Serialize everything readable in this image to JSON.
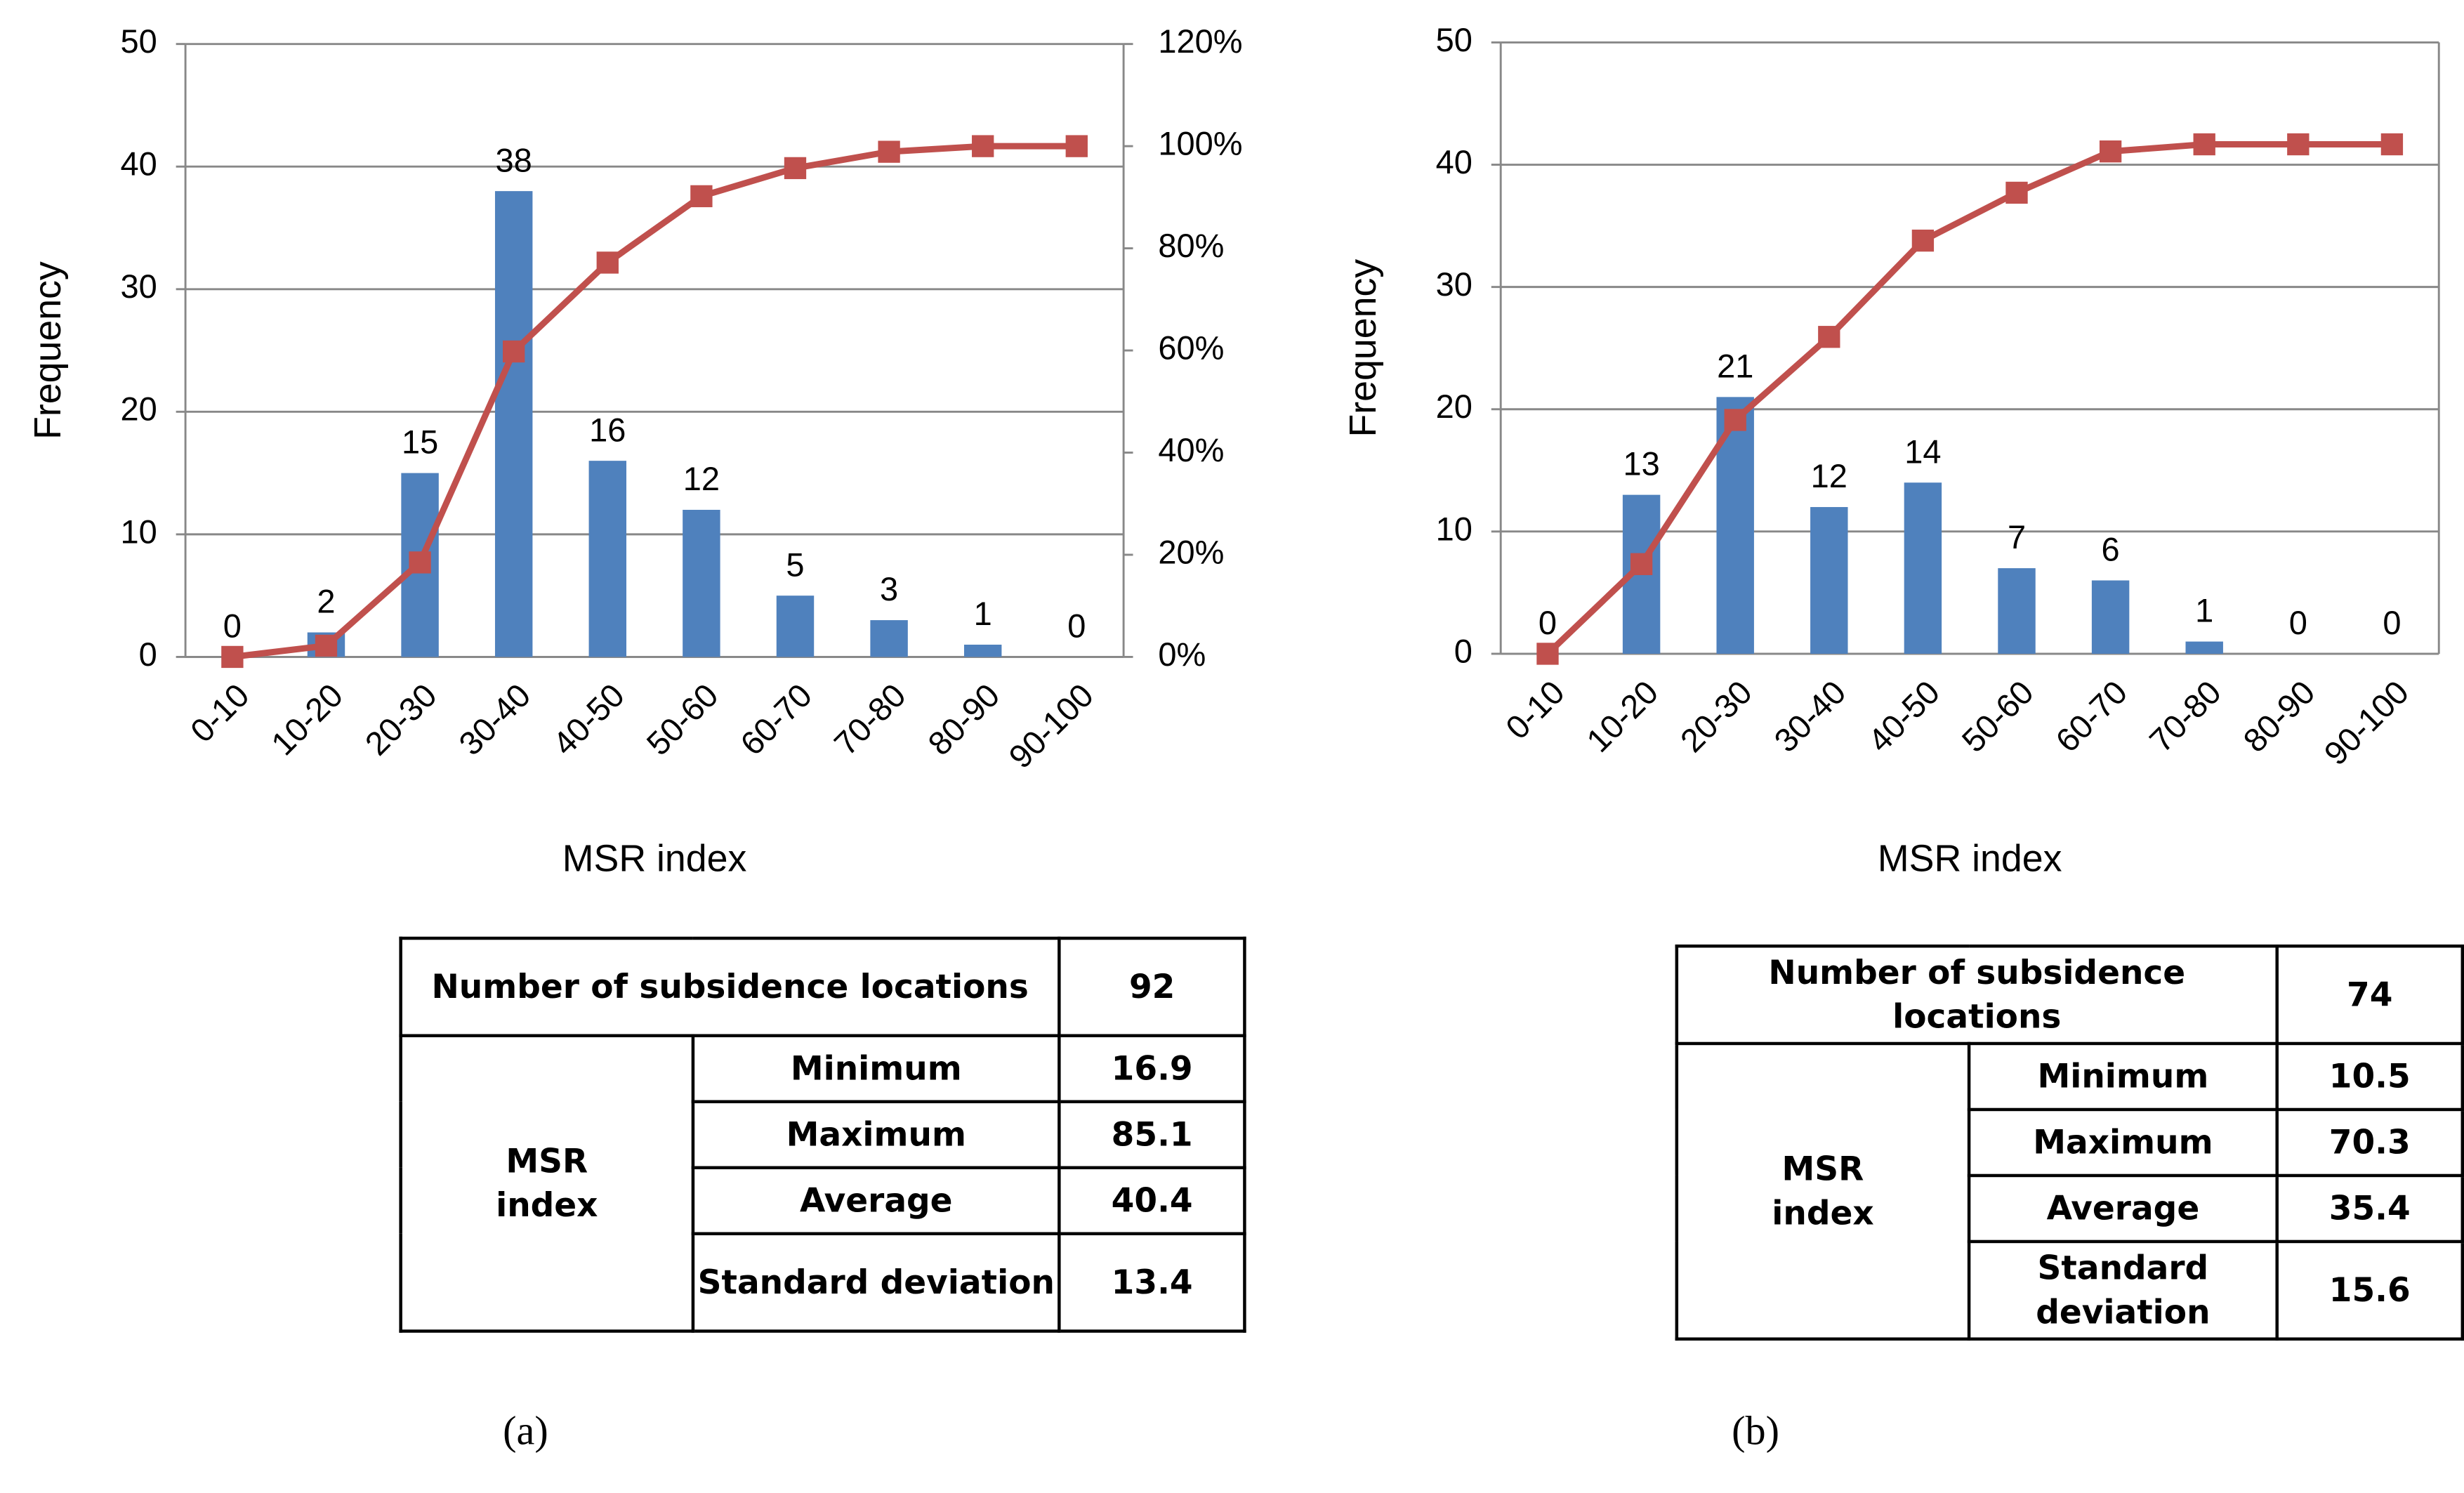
{
  "chart_data": [
    {
      "type": "bar",
      "y_label": "Frequency",
      "x_label": "MSR index",
      "categories": [
        "0-10",
        "10-20",
        "20-30",
        "30-40",
        "40-50",
        "50-60",
        "60-70",
        "70-80",
        "80-90",
        "90-100"
      ],
      "series": [
        {
          "color": "#4f81bd",
          "values": [
            0,
            2,
            15,
            38,
            16,
            12,
            5,
            3,
            1,
            0
          ]
        },
        {
          "type": "line",
          "axis": "y2",
          "color": "#c0504d",
          "values": [
            0,
            2.2,
            18.5,
            59.8,
            77.2,
            90.2,
            95.7,
            98.9,
            100,
            100
          ]
        }
      ],
      "ylim": [
        0,
        50
      ],
      "yticks": [
        0,
        10,
        20,
        30,
        40,
        50
      ],
      "y2lim": [
        0,
        120
      ],
      "y2ticks": [
        {
          "value": 0,
          "label": "0%"
        },
        {
          "value": 20,
          "label": "20%"
        },
        {
          "value": 40,
          "label": "40%"
        },
        {
          "value": 60,
          "label": "60%"
        },
        {
          "value": 80,
          "label": "80%"
        },
        {
          "value": 100,
          "label": "100%"
        },
        {
          "value": 120,
          "label": "120%"
        }
      ],
      "grid": true
    },
    {
      "type": "bar",
      "y_label": "Frequency",
      "x_label": "MSR index",
      "categories": [
        "0-10",
        "10-20",
        "20-30",
        "30-40",
        "40-50",
        "50-60",
        "60-70",
        "70-80",
        "80-90",
        "90-100"
      ],
      "series": [
        {
          "color": "#4f81bd",
          "values": [
            0,
            13,
            21,
            12,
            14,
            7,
            6,
            1,
            0,
            0
          ]
        },
        {
          "type": "line",
          "axis": "y2",
          "color": "#c0504d",
          "values": [
            0,
            17.6,
            45.9,
            62.2,
            81.1,
            90.5,
            98.6,
            100,
            100,
            100
          ]
        }
      ],
      "ylim": [
        0,
        50
      ],
      "yticks": [
        0,
        10,
        20,
        30,
        40,
        50
      ],
      "y2lim": [
        0,
        120
      ],
      "grid": true
    }
  ],
  "tables": [
    {
      "count_label": "Number of subsidence locations",
      "count": 92,
      "group_label": "MSR index",
      "stats": [
        [
          "Minimum",
          16.9
        ],
        [
          "Maximum",
          85.1
        ],
        [
          "Average",
          40.4
        ],
        [
          "Standard deviation",
          13.4
        ]
      ]
    },
    {
      "count_label": "Number of subsidence locations",
      "count": 74,
      "group_label": "MSR index",
      "stats": [
        [
          "Minimum",
          10.5
        ],
        [
          "Maximum",
          70.3
        ],
        [
          "Average",
          35.4
        ],
        [
          "Standard deviation",
          15.6
        ]
      ]
    }
  ],
  "captions": [
    "(a)",
    "(b)"
  ]
}
